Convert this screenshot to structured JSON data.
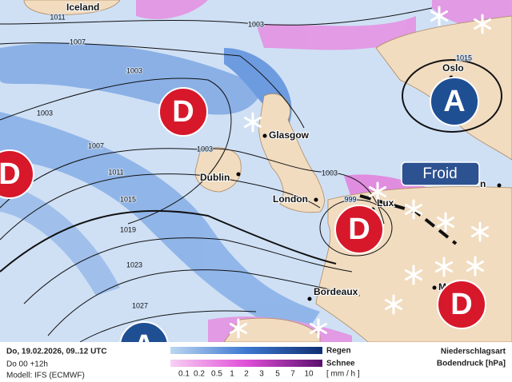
{
  "map": {
    "cities": [
      "Iceland",
      "Oslo",
      "Glasgow",
      "Dublin",
      "London",
      "Lux",
      "Bordeaux",
      "M",
      "n"
    ],
    "isobar_labels": [
      "1011",
      "1007",
      "1003",
      "1003",
      "1003",
      "1007",
      "1011",
      "1015",
      "1019",
      "1023",
      "1027",
      "1015",
      "1003",
      "999",
      "1003"
    ],
    "systems": [
      "D",
      "D",
      "D",
      "D",
      "A",
      "A"
    ],
    "annotation": "Froid"
  },
  "footer": {
    "valid": "Do, 19.02.2026, 09..12 UTC",
    "run": "Do 00 +12h",
    "model": "Modell: IFS (ECMWF)",
    "legend": {
      "rain": "Regen",
      "snow": "Schnee",
      "unit": "[ mm / h ]",
      "scale": [
        0.1,
        0.2,
        0.5,
        1,
        2,
        3,
        5,
        7,
        10
      ]
    },
    "title1": "Niederschlagsart",
    "title2": "Bodendruck [hPa]"
  }
}
